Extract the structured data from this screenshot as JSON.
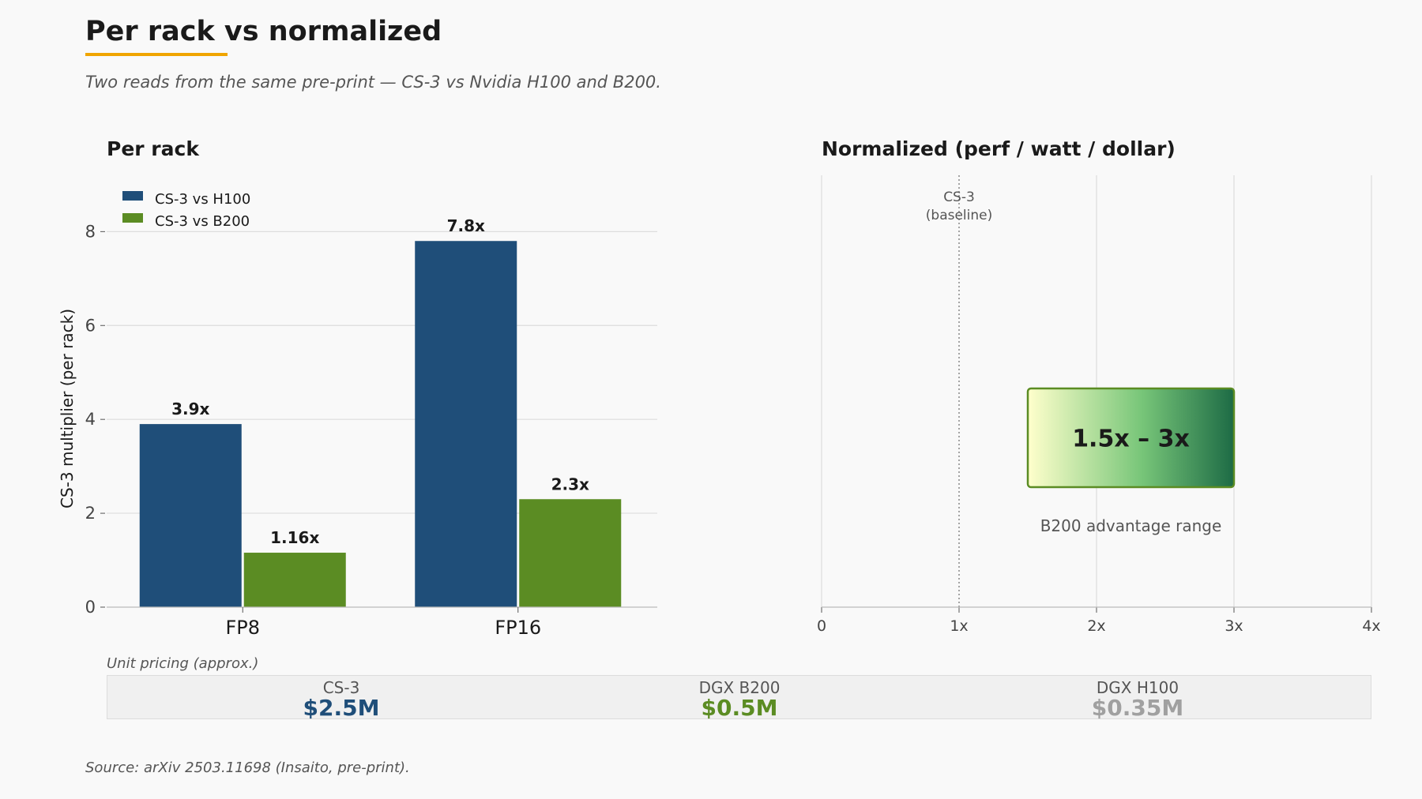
{
  "header": {
    "title": "Per rack vs normalized",
    "subtitle": "Two reads from the same pre-print — CS-3 vs Nvidia H100 and B200."
  },
  "chart_data": [
    {
      "type": "bar",
      "title": "Per rack",
      "categories": [
        "FP8",
        "FP16"
      ],
      "series": [
        {
          "name": "CS-3 vs H100",
          "values": [
            3.9,
            7.8
          ],
          "labels": [
            "3.9x",
            "7.8x"
          ],
          "color": "#1f4e79"
        },
        {
          "name": "CS-3 vs B200",
          "values": [
            1.16,
            2.3
          ],
          "labels": [
            "1.16x",
            "2.3x"
          ],
          "color": "#5b8c23"
        }
      ],
      "xlabel": "",
      "ylabel": "CS-3 multiplier (per rack)",
      "ylim": [
        0,
        9.2
      ],
      "yticks": [
        0,
        2,
        4,
        6,
        8
      ],
      "grid": true,
      "legend": "top-left"
    },
    {
      "type": "range",
      "title": "Normalized (perf / watt / dollar)",
      "xlim": [
        0,
        4
      ],
      "xticks": [
        0,
        1,
        2,
        3,
        4
      ],
      "xtick_labels": [
        "0",
        "1x",
        "2x",
        "3x",
        "4x"
      ],
      "baseline": {
        "x": 1,
        "label": "CS-3",
        "sublabel": "(baseline)"
      },
      "range": {
        "low": 1.5,
        "high": 3,
        "label": "1.5x  –  3x",
        "caption": "B200 advantage range",
        "gradient": [
          "#ffffcc",
          "#78c679",
          "#1d6b45"
        ],
        "border": "#5b8c23"
      },
      "grid": true
    }
  ],
  "pricing": {
    "caption": "Unit pricing (approx.)",
    "items": [
      {
        "name": "CS-3",
        "price": "$2.5M",
        "color": "#1f4e79"
      },
      {
        "name": "DGX B200",
        "price": "$0.5M",
        "color": "#5b8c23"
      },
      {
        "name": "DGX H100",
        "price": "$0.35M",
        "color": "#a0a0a0"
      }
    ]
  },
  "source": "Source: arXiv 2503.11698 (Insaito, pre-print)."
}
